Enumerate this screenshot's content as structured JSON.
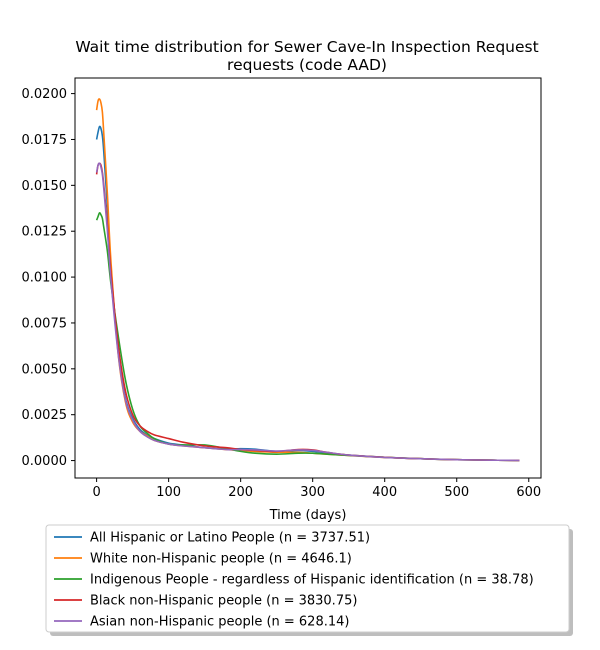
{
  "chart_data": {
    "type": "line",
    "title_lines": [
      "Wait time distribution  for Sewer Cave-In Inspection Request",
      "requests (code AAD)"
    ],
    "xlabel": "Time (days)",
    "ylabel": "",
    "xlim": [
      -30,
      617
    ],
    "ylim": [
      -0.00095,
      0.02085
    ],
    "xticks": [
      0,
      100,
      200,
      300,
      400,
      500,
      600
    ],
    "xtick_labels": [
      "0",
      "100",
      "200",
      "300",
      "400",
      "500",
      "600"
    ],
    "yticks": [
      0.0,
      0.0025,
      0.005,
      0.0075,
      0.01,
      0.0125,
      0.015,
      0.0175,
      0.02
    ],
    "ytick_labels": [
      "0.0000",
      "0.0025",
      "0.0050",
      "0.0075",
      "0.0100",
      "0.0125",
      "0.0150",
      "0.0175",
      "0.0200"
    ],
    "grid": false,
    "legend_position": "below",
    "series": [
      {
        "name": "All Hispanic or Latino People (n = 3737.51)",
        "color": "#1f77b4",
        "x": [
          0,
          2,
          4,
          6,
          8,
          10,
          15,
          20,
          30,
          40,
          50,
          60,
          70,
          80,
          100,
          120,
          150,
          180,
          200,
          220,
          250,
          280,
          300,
          320,
          350,
          400,
          450,
          500,
          550,
          587
        ],
        "y": [
          0.0175,
          0.0179,
          0.0182,
          0.0181,
          0.0177,
          0.0168,
          0.0138,
          0.0105,
          0.006,
          0.0034,
          0.0023,
          0.0017,
          0.0014,
          0.0012,
          0.00095,
          0.00085,
          0.0007,
          0.00062,
          0.00065,
          0.00062,
          0.0005,
          0.00055,
          0.0005,
          0.00042,
          0.0003,
          0.00018,
          0.0001,
          5e-05,
          2e-05,
          1e-05
        ]
      },
      {
        "name": "White non-Hispanic people (n = 4646.1)",
        "color": "#ff7f0e",
        "x": [
          0,
          2,
          4,
          6,
          8,
          10,
          15,
          20,
          30,
          40,
          50,
          60,
          70,
          80,
          100,
          120,
          150,
          180,
          200,
          220,
          250,
          280,
          300,
          320,
          350,
          400,
          450,
          500,
          550,
          587
        ],
        "y": [
          0.0191,
          0.0196,
          0.0197,
          0.0195,
          0.019,
          0.0178,
          0.0145,
          0.0108,
          0.0058,
          0.0032,
          0.0021,
          0.0016,
          0.00135,
          0.0011,
          0.0009,
          0.0008,
          0.0007,
          0.0006,
          0.00055,
          0.0005,
          0.00045,
          0.00045,
          0.0004,
          0.00035,
          0.00028,
          0.00017,
          0.0001,
          5e-05,
          2e-05,
          1e-05
        ]
      },
      {
        "name": "Indigenous People - regardless of Hispanic identification (n = 38.78)",
        "color": "#2ca02c",
        "x": [
          0,
          2,
          4,
          6,
          8,
          10,
          15,
          20,
          30,
          40,
          50,
          60,
          70,
          80,
          100,
          120,
          150,
          180,
          200,
          220,
          250,
          280,
          300,
          320,
          350,
          400,
          450,
          500,
          550,
          587
        ],
        "y": [
          0.0131,
          0.0133,
          0.0135,
          0.0134,
          0.0132,
          0.0127,
          0.0114,
          0.0096,
          0.0068,
          0.0044,
          0.0028,
          0.0019,
          0.0015,
          0.0012,
          0.0009,
          0.00085,
          0.00085,
          0.00065,
          0.0005,
          0.0004,
          0.00035,
          0.0004,
          0.0004,
          0.00035,
          0.00028,
          0.00018,
          0.0001,
          5e-05,
          2e-05,
          1e-05
        ]
      },
      {
        "name": "Black non-Hispanic people (n = 3830.75)",
        "color": "#d62728",
        "x": [
          0,
          2,
          4,
          6,
          8,
          10,
          15,
          20,
          30,
          40,
          50,
          60,
          70,
          80,
          100,
          120,
          150,
          180,
          200,
          220,
          250,
          280,
          300,
          320,
          350,
          400,
          450,
          500,
          550,
          587
        ],
        "y": [
          0.0156,
          0.0161,
          0.0162,
          0.0161,
          0.0157,
          0.015,
          0.0128,
          0.0102,
          0.0063,
          0.0038,
          0.0025,
          0.0019,
          0.0016,
          0.0014,
          0.0012,
          0.001,
          0.0008,
          0.0007,
          0.0006,
          0.00055,
          0.0005,
          0.0006,
          0.00058,
          0.00045,
          0.0003,
          0.00018,
          0.0001,
          5e-05,
          2e-05,
          1e-05
        ]
      },
      {
        "name": "Asian non-Hispanic people (n = 628.14)",
        "color": "#9467bd",
        "x": [
          0,
          2,
          4,
          6,
          8,
          10,
          15,
          20,
          30,
          40,
          50,
          60,
          70,
          80,
          100,
          120,
          150,
          180,
          200,
          220,
          250,
          280,
          300,
          320,
          350,
          400,
          450,
          500,
          550,
          587
        ],
        "y": [
          0.0157,
          0.0161,
          0.0162,
          0.016,
          0.0156,
          0.0148,
          0.0125,
          0.0098,
          0.0058,
          0.0033,
          0.0022,
          0.0016,
          0.0013,
          0.0011,
          0.0009,
          0.0008,
          0.0007,
          0.0006,
          0.0006,
          0.00058,
          0.00052,
          0.00058,
          0.00055,
          0.00045,
          0.0003,
          0.00017,
          0.0001,
          5e-05,
          2e-05,
          1e-05
        ]
      }
    ]
  }
}
